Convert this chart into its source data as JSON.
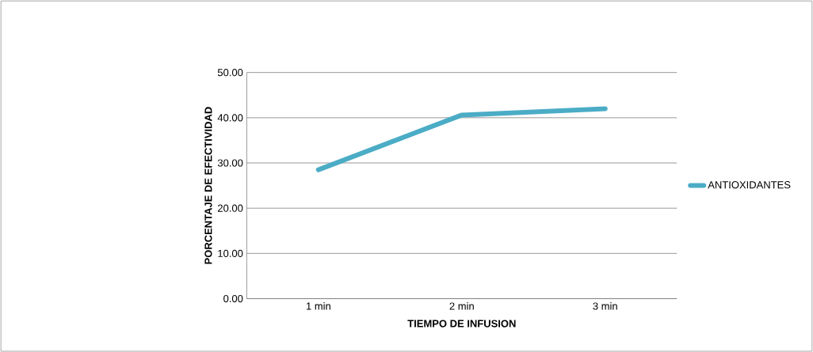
{
  "chart_data": {
    "type": "line",
    "xlabel": "TIEMPO DE INFUSION",
    "ylabel": "PORCENTAJE DE EFECTIVIDAD",
    "categories": [
      "1 min",
      "2 min",
      "3 min"
    ],
    "series": [
      {
        "name": "ANTIOXIDANTES",
        "color": "#4bacc6",
        "values": [
          28.5,
          40.6,
          42.0
        ]
      }
    ],
    "ylim": [
      0,
      50
    ],
    "yticks": [
      {
        "value": 0,
        "label": "0.00"
      },
      {
        "value": 10,
        "label": "10.00"
      },
      {
        "value": 20,
        "label": "20.00"
      },
      {
        "value": 30,
        "label": "30.00"
      },
      {
        "value": 40,
        "label": "40.00"
      },
      {
        "value": 50,
        "label": "50.00"
      }
    ],
    "grid": "y",
    "legend": "right",
    "line_style": "solid"
  }
}
